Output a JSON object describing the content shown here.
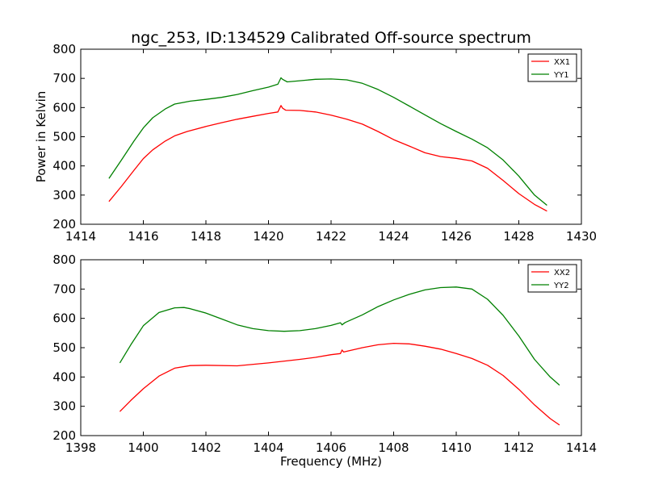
{
  "figure": {
    "title": "ngc_253, ID:134529 Calibrated Off-source spectrum",
    "background": "#ffffff"
  },
  "colors": {
    "xx": "#ff0000",
    "yy": "#008000",
    "axes": "#000000"
  },
  "chart_data": [
    {
      "type": "line",
      "title": "ngc_253, ID:134529 Calibrated Off-source spectrum",
      "xlabel": "",
      "ylabel": "Power in Kelvin",
      "xlim": [
        1414,
        1430
      ],
      "ylim": [
        200,
        800
      ],
      "xticks": [
        1414,
        1416,
        1418,
        1420,
        1422,
        1424,
        1426,
        1428,
        1430
      ],
      "yticks": [
        200,
        300,
        400,
        500,
        600,
        700,
        800
      ],
      "grid": false,
      "legend_position": "top-right",
      "series": [
        {
          "name": "XX1",
          "color": "#ff0000",
          "x": [
            1414.9,
            1415.3,
            1415.7,
            1416.0,
            1416.3,
            1416.7,
            1417.0,
            1417.4,
            1418.0,
            1418.5,
            1419.0,
            1419.5,
            1420.0,
            1420.3,
            1420.4,
            1420.45,
            1420.55,
            1421.0,
            1421.5,
            1422.0,
            1422.5,
            1423.0,
            1423.5,
            1424.0,
            1424.5,
            1425.0,
            1425.5,
            1426.0,
            1426.5,
            1427.0,
            1427.5,
            1428.0,
            1428.5,
            1428.9
          ],
          "y": [
            278,
            330,
            385,
            425,
            455,
            485,
            503,
            518,
            535,
            548,
            560,
            570,
            580,
            585,
            607,
            598,
            591,
            590,
            585,
            574,
            560,
            543,
            518,
            490,
            468,
            445,
            432,
            426,
            417,
            392,
            350,
            305,
            268,
            245
          ]
        },
        {
          "name": "YY1",
          "color": "#008000",
          "x": [
            1414.9,
            1415.3,
            1415.7,
            1416.0,
            1416.3,
            1416.7,
            1417.0,
            1417.5,
            1418.0,
            1418.5,
            1419.0,
            1419.5,
            1420.0,
            1420.3,
            1420.4,
            1420.45,
            1420.6,
            1421.0,
            1421.5,
            1422.0,
            1422.5,
            1423.0,
            1423.5,
            1424.0,
            1424.5,
            1425.0,
            1425.5,
            1426.0,
            1426.5,
            1427.0,
            1427.5,
            1428.0,
            1428.5,
            1428.9
          ],
          "y": [
            357,
            420,
            485,
            530,
            565,
            595,
            612,
            622,
            628,
            635,
            645,
            658,
            670,
            680,
            702,
            697,
            688,
            692,
            697,
            698,
            695,
            683,
            662,
            635,
            605,
            575,
            545,
            518,
            492,
            462,
            420,
            365,
            300,
            265
          ]
        }
      ]
    },
    {
      "type": "line",
      "title": "",
      "xlabel": "Frequency (MHz)",
      "ylabel": "",
      "xlim": [
        1398,
        1414
      ],
      "ylim": [
        200,
        800
      ],
      "xticks": [
        1398,
        1400,
        1402,
        1404,
        1406,
        1408,
        1410,
        1412,
        1414
      ],
      "yticks": [
        200,
        300,
        400,
        500,
        600,
        700,
        800
      ],
      "grid": false,
      "legend_position": "top-right",
      "series": [
        {
          "name": "XX2",
          "color": "#ff0000",
          "x": [
            1399.25,
            1399.6,
            1400.0,
            1400.5,
            1401.0,
            1401.5,
            1402.0,
            1403.0,
            1404.0,
            1405.0,
            1405.5,
            1406.0,
            1406.3,
            1406.35,
            1406.4,
            1407.0,
            1407.5,
            1408.0,
            1408.5,
            1409.0,
            1409.5,
            1410.0,
            1410.5,
            1411.0,
            1411.5,
            1412.0,
            1412.5,
            1413.0,
            1413.3
          ],
          "y": [
            282,
            320,
            360,
            403,
            430,
            439,
            440,
            438,
            448,
            460,
            467,
            476,
            480,
            492,
            485,
            500,
            510,
            515,
            513,
            505,
            495,
            480,
            463,
            440,
            405,
            358,
            305,
            258,
            236
          ]
        },
        {
          "name": "YY2",
          "color": "#008000",
          "x": [
            1399.25,
            1399.6,
            1400.0,
            1400.5,
            1401.0,
            1401.3,
            1401.5,
            1402.0,
            1402.5,
            1403.0,
            1403.5,
            1404.0,
            1404.5,
            1405.0,
            1405.5,
            1406.0,
            1406.3,
            1406.35,
            1406.45,
            1407.0,
            1407.5,
            1408.0,
            1408.5,
            1409.0,
            1409.5,
            1410.0,
            1410.5,
            1411.0,
            1411.5,
            1412.0,
            1412.5,
            1413.0,
            1413.3
          ],
          "y": [
            448,
            510,
            575,
            620,
            636,
            637,
            633,
            618,
            598,
            578,
            565,
            558,
            556,
            558,
            565,
            576,
            585,
            578,
            586,
            612,
            640,
            663,
            682,
            697,
            705,
            707,
            700,
            665,
            610,
            540,
            460,
            400,
            372
          ]
        }
      ]
    }
  ]
}
